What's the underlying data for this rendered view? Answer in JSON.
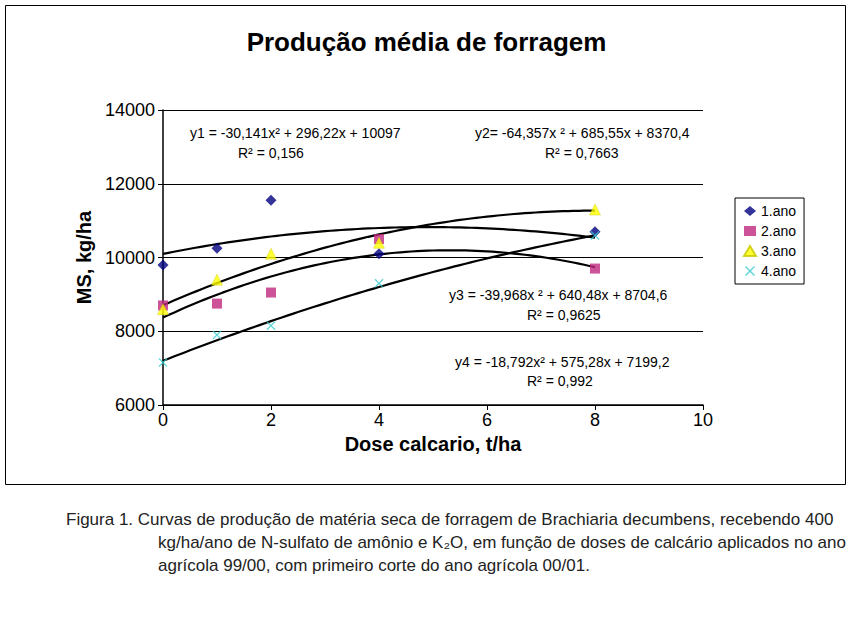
{
  "chart_data": {
    "type": "scatter",
    "title": "Produção média de forragem",
    "x_label": "Dose calcario, t/ha",
    "y_label": "MS, kg/ha",
    "xlim": [
      0,
      10
    ],
    "xticks": [
      0,
      2,
      4,
      6,
      8,
      10
    ],
    "ylim": [
      6000,
      14000
    ],
    "yticks": [
      6000,
      8000,
      10000,
      12000,
      14000
    ],
    "grid": true,
    "legend": "right",
    "series": [
      {
        "name": "1.ano",
        "color": "#000080",
        "marker": "diamond",
        "x": [
          0,
          1,
          2,
          4,
          8
        ],
        "values": [
          9800,
          10250,
          11550,
          10100,
          10700
        ],
        "trend": {
          "coefficients": [
            -30.141,
            296.22,
            10097
          ],
          "color": "#000000",
          "line_style": "solid",
          "equation": "y1 = -30,141x² + 296,22x + 10097",
          "r2_label": "R² = 0,156"
        }
      },
      {
        "name": "2.ano",
        "color": "#c0287e",
        "marker": "square",
        "x": [
          0,
          1,
          2,
          4,
          8
        ],
        "values": [
          8700,
          8750,
          9050,
          10500,
          9700
        ],
        "trend": {
          "coefficients": [
            -64.357,
            685.55,
            8370.4
          ],
          "color": "#000000",
          "line_style": "solid",
          "equation": "y2= -64,357x ² + 685,55x + 8370,4",
          "r2_label": "R² = 0,7663"
        }
      },
      {
        "name": "3.ano",
        "color": "#ffff00",
        "marker": "triangle",
        "x": [
          0,
          1,
          2,
          4,
          8
        ],
        "values": [
          8600,
          9400,
          10100,
          10400,
          11300
        ],
        "trend": {
          "coefficients": [
            -39.968,
            640.48,
            8704.6
          ],
          "color": "#000000",
          "line_style": "solid",
          "equation": "y3 = -39,968x ² + 640,48x + 8704,6",
          "r2_label": "R² = 0,9625"
        }
      },
      {
        "name": "4.ano",
        "color": "#33cccc",
        "marker": "x",
        "x": [
          0,
          1,
          2,
          4,
          8
        ],
        "values": [
          7150,
          7900,
          8150,
          9300,
          10600
        ],
        "trend": {
          "coefficients": [
            -18.792,
            575.28,
            7199.2
          ],
          "color": "#000000",
          "line_style": "solid",
          "equation": "y4 = -18,792x² + 575,28x + 7199,2",
          "r2_label": "R² = 0,992"
        }
      }
    ],
    "caption": "Figura 1. Curvas de produção de matéria seca de forragem de Brachiaria decumbens, recebendo 400 kg/ha/ano de N-sulfato de amônio e K₂O, em função de doses de calcário aplicados no ano agrícola 99/00, com primeiro corte do ano agrícola 00/01."
  }
}
